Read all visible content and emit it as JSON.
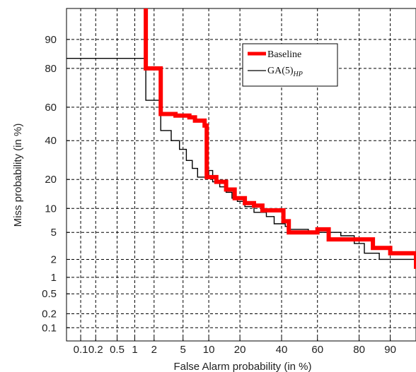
{
  "chart_data": {
    "type": "line",
    "title": "",
    "xlabel": "False Alarm probability (in %)",
    "ylabel": "Miss probability (in %)",
    "xscale": "probit",
    "yscale": "probit",
    "xlim": [
      0.05,
      95
    ],
    "ylim": [
      0.05,
      96
    ],
    "xticks": [
      0.1,
      0.2,
      0.5,
      1,
      2,
      5,
      10,
      20,
      40,
      60,
      80,
      90
    ],
    "xtick_labels": [
      "0.1",
      "0.2",
      "0.5",
      "1",
      "2",
      "5",
      "10",
      "20",
      "40",
      "60",
      "80",
      "90"
    ],
    "yticks": [
      0.1,
      0.2,
      0.5,
      1,
      2,
      5,
      10,
      20,
      40,
      60,
      80,
      90
    ],
    "ytick_labels": [
      "0.1",
      "0.2",
      "0.5",
      "1",
      "2",
      "5",
      "10",
      "20",
      "40",
      "60",
      "80",
      "90"
    ],
    "grid": true,
    "grid_style": "dashed",
    "legend_position": "top-center",
    "series": [
      {
        "name": "Baseline",
        "color": "#ff0000",
        "style": "thick",
        "points": [
          [
            1.5,
            96
          ],
          [
            1.5,
            80
          ],
          [
            2.5,
            80
          ],
          [
            2.5,
            56
          ],
          [
            4,
            56
          ],
          [
            4,
            55
          ],
          [
            6,
            55
          ],
          [
            6,
            54
          ],
          [
            7,
            54
          ],
          [
            7,
            52
          ],
          [
            9,
            52
          ],
          [
            9,
            49
          ],
          [
            9.5,
            49
          ],
          [
            9.5,
            21
          ],
          [
            12,
            21
          ],
          [
            12,
            19
          ],
          [
            15,
            19
          ],
          [
            15,
            16
          ],
          [
            18,
            16
          ],
          [
            18,
            13
          ],
          [
            22,
            13
          ],
          [
            22,
            11.5
          ],
          [
            26,
            11.5
          ],
          [
            26,
            10.8
          ],
          [
            30,
            10.8
          ],
          [
            30,
            9.5
          ],
          [
            41,
            9.5
          ],
          [
            41,
            7
          ],
          [
            44,
            7
          ],
          [
            44,
            5
          ],
          [
            60,
            5
          ],
          [
            60,
            5.5
          ],
          [
            66,
            5.5
          ],
          [
            66,
            4
          ],
          [
            85,
            4
          ],
          [
            85,
            3
          ],
          [
            90,
            3
          ],
          [
            90,
            2.5
          ],
          [
            95,
            2.5
          ],
          [
            95,
            1.4
          ]
        ]
      },
      {
        "name": "GA(5)HP",
        "color": "#000000",
        "style": "thin",
        "points": [
          [
            0.05,
            84
          ],
          [
            1.5,
            84
          ],
          [
            1.5,
            64
          ],
          [
            2.5,
            64
          ],
          [
            2.5,
            46
          ],
          [
            3.5,
            46
          ],
          [
            3.5,
            40
          ],
          [
            4.5,
            40
          ],
          [
            4.5,
            35
          ],
          [
            5.5,
            35
          ],
          [
            5.5,
            29
          ],
          [
            6.5,
            29
          ],
          [
            6.5,
            25
          ],
          [
            7.5,
            25
          ],
          [
            7.5,
            21
          ],
          [
            10,
            21
          ],
          [
            10,
            24
          ],
          [
            11,
            24
          ],
          [
            11,
            19
          ],
          [
            13,
            19
          ],
          [
            13,
            17
          ],
          [
            15,
            17
          ],
          [
            15,
            15
          ],
          [
            17,
            15
          ],
          [
            17,
            13
          ],
          [
            19,
            13
          ],
          [
            19,
            12
          ],
          [
            22,
            12
          ],
          [
            22,
            10.5
          ],
          [
            26,
            10.5
          ],
          [
            26,
            9
          ],
          [
            32,
            9
          ],
          [
            32,
            8
          ],
          [
            36,
            8
          ],
          [
            36,
            6.5
          ],
          [
            42,
            6.5
          ],
          [
            42,
            6
          ],
          [
            44,
            6
          ],
          [
            44,
            5.5
          ],
          [
            55,
            5.5
          ],
          [
            55,
            5
          ],
          [
            72,
            5
          ],
          [
            72,
            4.5
          ],
          [
            78,
            4.5
          ],
          [
            78,
            3.5
          ],
          [
            82,
            3.5
          ],
          [
            82,
            2.5
          ],
          [
            87,
            2.5
          ],
          [
            87,
            2
          ],
          [
            95,
            2
          ]
        ]
      }
    ],
    "legend": {
      "series0_label": "Baseline",
      "series1_label_main": "GA(5)",
      "series1_label_sub": "HP"
    }
  }
}
